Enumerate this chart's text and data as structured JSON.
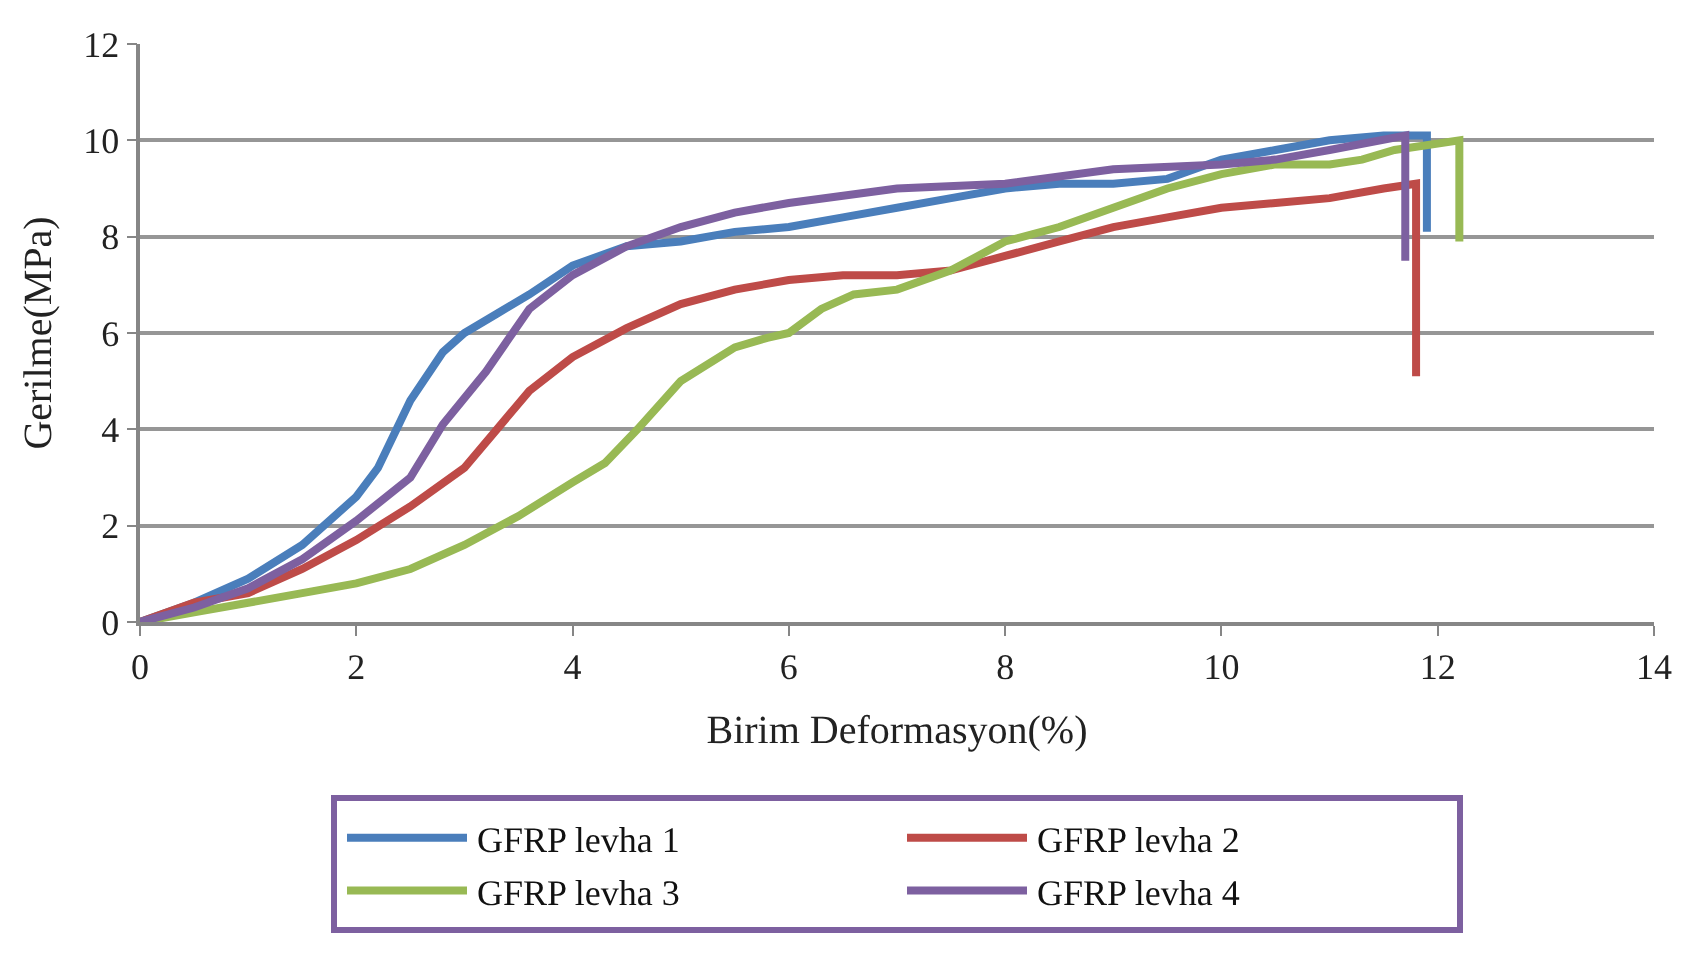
{
  "chart_data": {
    "type": "line",
    "xlabel": "Birim Deformasyon(%)",
    "ylabel": "Gerilme(MPa)",
    "xlim": [
      0,
      14
    ],
    "xticks": [
      0,
      2,
      4,
      6,
      8,
      10,
      12,
      14
    ],
    "ylim": [
      0,
      12
    ],
    "yticks": [
      0,
      2,
      4,
      6,
      8,
      10,
      12
    ],
    "grid": "y",
    "legend": "bottom",
    "marker": "none",
    "line_style": "solid",
    "series": [
      {
        "name": "GFRP levha 1",
        "color": "#4a7ebb",
        "x": [
          0,
          0.5,
          1,
          1.5,
          2,
          2.2,
          2.5,
          2.8,
          3,
          3.3,
          3.6,
          4,
          4.5,
          5,
          5.5,
          6,
          6.5,
          7,
          7.5,
          8,
          8.5,
          9,
          9.5,
          10,
          10.5,
          11,
          11.5,
          11.9,
          11.9
        ],
        "values": [
          0,
          0.4,
          0.9,
          1.6,
          2.6,
          3.2,
          4.6,
          5.6,
          6.0,
          6.4,
          6.8,
          7.4,
          7.8,
          7.9,
          8.1,
          8.2,
          8.4,
          8.6,
          8.8,
          9.0,
          9.1,
          9.1,
          9.2,
          9.6,
          9.8,
          10.0,
          10.1,
          10.1,
          8.1
        ]
      },
      {
        "name": "GFRP levha 2",
        "color": "#be4b48",
        "x": [
          0,
          0.5,
          1,
          1.5,
          2,
          2.5,
          3,
          3.3,
          3.6,
          4,
          4.5,
          5,
          5.5,
          6,
          6.5,
          7,
          7.5,
          8,
          8.5,
          9,
          9.5,
          10,
          10.5,
          11,
          11.5,
          11.8,
          11.8
        ],
        "values": [
          0,
          0.4,
          0.6,
          1.1,
          1.7,
          2.4,
          3.2,
          4.0,
          4.8,
          5.5,
          6.1,
          6.6,
          6.9,
          7.1,
          7.2,
          7.2,
          7.3,
          7.6,
          7.9,
          8.2,
          8.4,
          8.6,
          8.7,
          8.8,
          9.0,
          9.1,
          5.1
        ]
      },
      {
        "name": "GFRP levha 3",
        "color": "#98b954",
        "x": [
          0,
          0.5,
          1,
          1.5,
          2,
          2.5,
          3,
          3.5,
          4,
          4.3,
          4.6,
          5,
          5.5,
          5.8,
          6,
          6.3,
          6.6,
          7,
          7.5,
          8,
          8.5,
          9,
          9.5,
          10,
          10.5,
          11,
          11.3,
          11.6,
          12.2,
          12.2
        ],
        "values": [
          0,
          0.2,
          0.4,
          0.6,
          0.8,
          1.1,
          1.6,
          2.2,
          2.9,
          3.3,
          4.0,
          5.0,
          5.7,
          5.9,
          6.0,
          6.5,
          6.8,
          6.9,
          7.3,
          7.9,
          8.2,
          8.6,
          9.0,
          9.3,
          9.5,
          9.5,
          9.6,
          9.8,
          10.0,
          7.9
        ]
      },
      {
        "name": "GFRP levha 4",
        "color": "#7d60a0",
        "x": [
          0,
          0.5,
          1,
          1.5,
          2,
          2.5,
          2.8,
          3.2,
          3.6,
          4,
          4.5,
          5,
          5.5,
          6,
          7,
          8,
          9,
          10,
          10.5,
          11,
          11.7,
          11.7
        ],
        "values": [
          0,
          0.3,
          0.7,
          1.3,
          2.1,
          3.0,
          4.1,
          5.2,
          6.5,
          7.2,
          7.8,
          8.2,
          8.5,
          8.7,
          9.0,
          9.1,
          9.4,
          9.5,
          9.6,
          9.8,
          10.1,
          7.5
        ]
      }
    ]
  }
}
